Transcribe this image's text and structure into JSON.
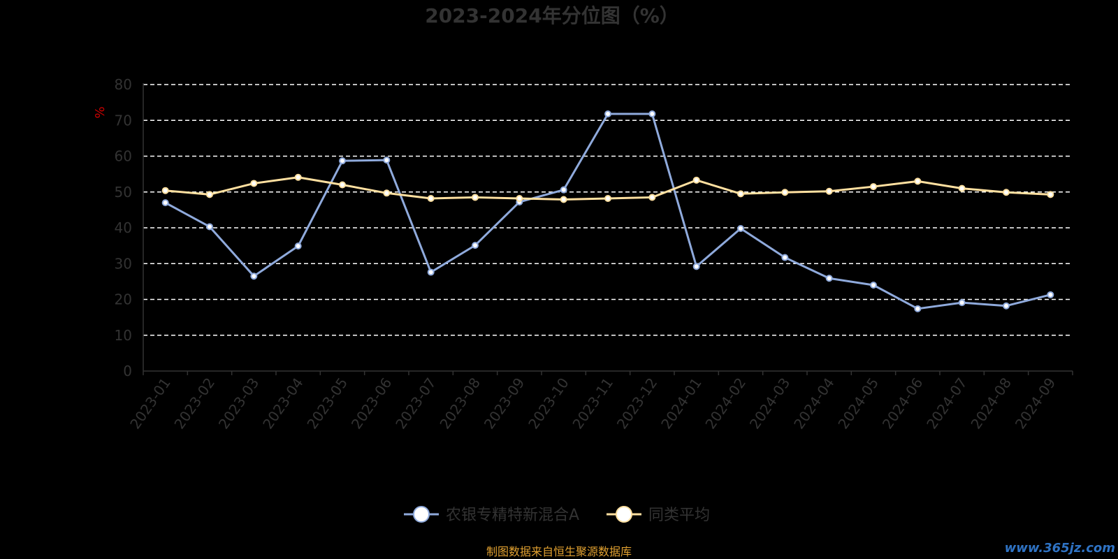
{
  "chart_data": {
    "type": "line",
    "title": "2023-2024年分位图（%）",
    "ylabel": "%",
    "ylim": [
      0,
      80
    ],
    "yticks": [
      0,
      10,
      20,
      30,
      40,
      50,
      60,
      70,
      80
    ],
    "grid": true,
    "legend_position": "bottom",
    "categories": [
      "2023-01",
      "2023-02",
      "2023-03",
      "2023-04",
      "2023-05",
      "2023-06",
      "2023-07",
      "2023-08",
      "2023-09",
      "2023-10",
      "2023-11",
      "2023-12",
      "2024-01",
      "2024-02",
      "2024-03",
      "2024-04",
      "2024-05",
      "2024-06",
      "2024-07",
      "2024-08",
      "2024-09"
    ],
    "series": [
      {
        "name": "农银专精特新混合A",
        "color": "#8faadc",
        "values": [
          47.0,
          40.3,
          26.5,
          34.9,
          58.7,
          58.9,
          27.6,
          35.1,
          47.2,
          50.6,
          71.8,
          71.8,
          29.2,
          39.8,
          31.7,
          25.9,
          24.0,
          17.4,
          19.1,
          18.2,
          21.3
        ]
      },
      {
        "name": "同类平均",
        "color": "#ffe0a0",
        "values": [
          50.4,
          49.3,
          52.4,
          54.1,
          52.0,
          49.7,
          48.2,
          48.5,
          48.2,
          47.9,
          48.2,
          48.5,
          53.3,
          49.5,
          49.9,
          50.2,
          51.5,
          53.0,
          51.0,
          49.9,
          49.3
        ]
      }
    ]
  },
  "source_text": "制图数据来自恒生聚源数据库",
  "watermark_text": "www.365jz.com",
  "colors": {
    "background": "#000000",
    "axis": "#333333",
    "grid": "#ffffff"
  }
}
